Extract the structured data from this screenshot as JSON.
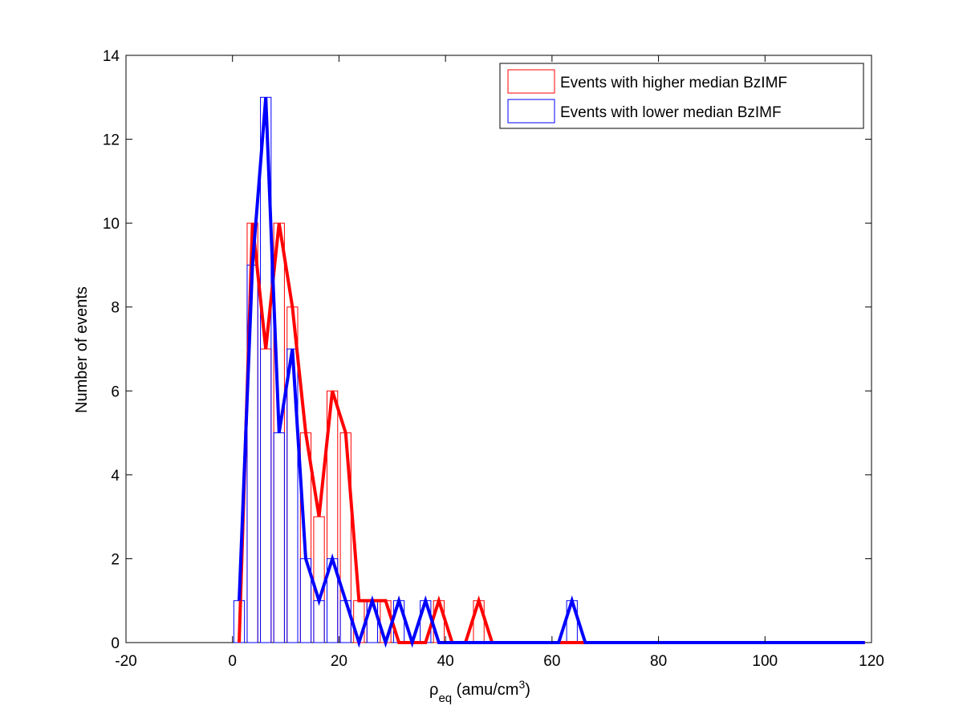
{
  "chart_data": {
    "type": "bar",
    "xlabel": {
      "main": "ρ",
      "sub": "eq",
      "unit_before_sup": " (amu/cm",
      "sup": "3",
      "unit_after_sup": ")"
    },
    "ylabel": "Number of events",
    "xlim": [
      -20,
      120
    ],
    "ylim": [
      0,
      14
    ],
    "x_ticks": [
      -20,
      0,
      20,
      40,
      60,
      80,
      100,
      120
    ],
    "y_ticks": [
      0,
      2,
      4,
      6,
      8,
      10,
      12,
      14
    ],
    "grid": false,
    "legend_position": "top-right",
    "bin_width": 2.5,
    "x": [
      1.25,
      3.75,
      6.25,
      8.75,
      11.25,
      13.75,
      16.25,
      18.75,
      21.25,
      23.75,
      26.25,
      28.75,
      31.25,
      33.75,
      36.25,
      38.75,
      41.25,
      43.75,
      46.25,
      48.75,
      51.25,
      53.75,
      56.25,
      58.75,
      61.25,
      63.75,
      66.25,
      68.75,
      71.25,
      73.75,
      76.25,
      78.75,
      81.25,
      83.75,
      86.25,
      88.75,
      91.25,
      93.75,
      96.25,
      98.75,
      101.25,
      103.75,
      106.25,
      108.75,
      111.25,
      113.75,
      116.25,
      118.75
    ],
    "series": [
      {
        "name": "Events with higher median BzIMF",
        "color": "#ff0000",
        "values": [
          0,
          10,
          7,
          10,
          8,
          5,
          3,
          6,
          5,
          1,
          1,
          1,
          0,
          0,
          0,
          1,
          0,
          0,
          1,
          0,
          0,
          0,
          0,
          0,
          0,
          0,
          0,
          0,
          0,
          0,
          0,
          0,
          0,
          0,
          0,
          0,
          0,
          0,
          0,
          0,
          0,
          0,
          0,
          0,
          0,
          0,
          0,
          0
        ]
      },
      {
        "name": "Events with lower median BzIMF",
        "color": "#0000ff",
        "values": [
          1,
          9,
          13,
          5,
          7,
          2,
          1,
          2,
          1,
          0,
          1,
          0,
          1,
          0,
          1,
          0,
          0,
          0,
          0,
          0,
          0,
          0,
          0,
          0,
          0,
          1,
          0,
          0,
          0,
          0,
          0,
          0,
          0,
          0,
          0,
          0,
          0,
          0,
          0,
          0,
          0,
          0,
          0,
          0,
          0,
          0,
          0,
          0
        ]
      }
    ]
  }
}
